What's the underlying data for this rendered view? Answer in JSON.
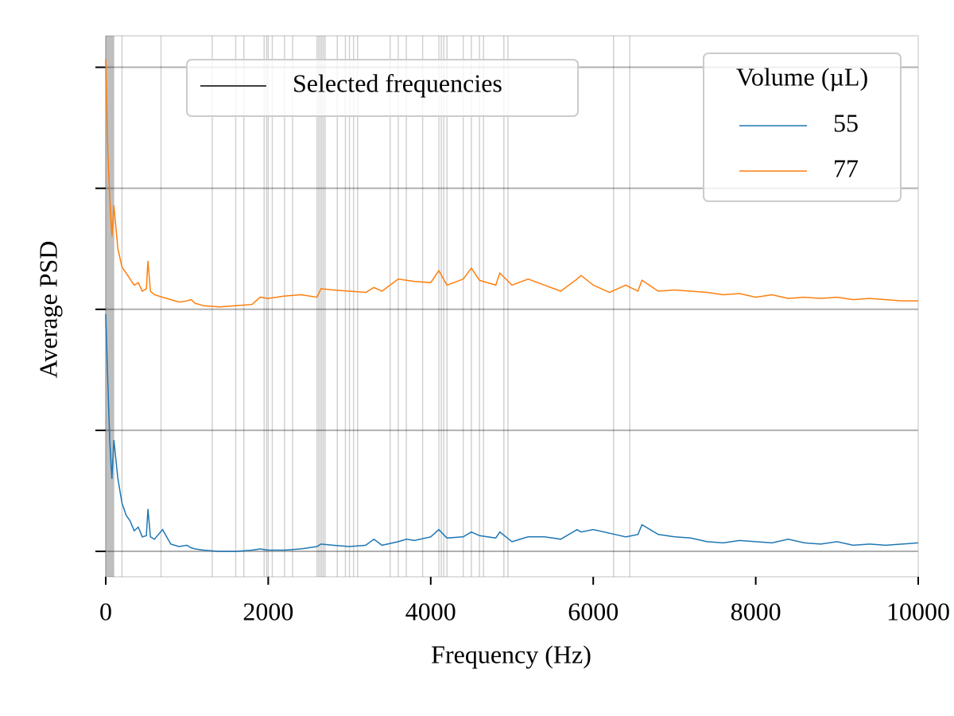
{
  "chart_data": {
    "type": "line",
    "x_label": "Frequency (Hz)",
    "y_label": "Average PSD",
    "xlim": [
      0,
      10000
    ],
    "xticks": [
      0,
      2000,
      4000,
      6000,
      8000,
      10000
    ],
    "ylim": [
      -0.21,
      4.26
    ],
    "yticks": [
      0,
      1,
      2,
      3,
      4
    ],
    "yticklabels": false,
    "grid": true,
    "x": [
      0,
      25,
      50,
      75,
      100,
      150,
      200,
      250,
      300,
      350,
      400,
      450,
      500,
      520,
      550,
      600,
      700,
      800,
      900,
      1000,
      1050,
      1100,
      1200,
      1400,
      1600,
      1800,
      1900,
      2000,
      2200,
      2400,
      2600,
      2650,
      2800,
      3000,
      3200,
      3300,
      3400,
      3600,
      3700,
      3800,
      4000,
      4100,
      4200,
      4400,
      4500,
      4600,
      4800,
      4850,
      5000,
      5200,
      5400,
      5600,
      5800,
      5850,
      6000,
      6200,
      6400,
      6550,
      6600,
      6800,
      7000,
      7200,
      7400,
      7600,
      7800,
      8000,
      8200,
      8400,
      8600,
      8800,
      9000,
      9200,
      9400,
      9600,
      9800,
      10000
    ],
    "legend_title": "Volume (µL)",
    "series": [
      {
        "name": "55",
        "color": "#1f77b4",
        "values": [
          1.96,
          1.4,
          0.9,
          0.6,
          0.92,
          0.6,
          0.4,
          0.3,
          0.25,
          0.17,
          0.2,
          0.12,
          0.13,
          0.35,
          0.12,
          0.1,
          0.18,
          0.06,
          0.04,
          0.05,
          0.03,
          0.02,
          0.01,
          0.0,
          0.0,
          0.01,
          0.02,
          0.01,
          0.01,
          0.02,
          0.04,
          0.06,
          0.05,
          0.04,
          0.05,
          0.1,
          0.05,
          0.08,
          0.1,
          0.09,
          0.12,
          0.18,
          0.11,
          0.12,
          0.16,
          0.13,
          0.11,
          0.16,
          0.08,
          0.12,
          0.12,
          0.1,
          0.18,
          0.16,
          0.18,
          0.15,
          0.12,
          0.14,
          0.22,
          0.14,
          0.12,
          0.11,
          0.08,
          0.07,
          0.09,
          0.08,
          0.07,
          0.1,
          0.07,
          0.06,
          0.08,
          0.05,
          0.06,
          0.05,
          0.06,
          0.07
        ]
      },
      {
        "name": "77",
        "color": "#ff7f0e",
        "values": [
          4.07,
          3.3,
          2.9,
          2.6,
          2.86,
          2.5,
          2.35,
          2.3,
          2.25,
          2.2,
          2.22,
          2.15,
          2.17,
          2.4,
          2.15,
          2.12,
          2.1,
          2.08,
          2.06,
          2.07,
          2.08,
          2.05,
          2.03,
          2.02,
          2.03,
          2.04,
          2.1,
          2.09,
          2.11,
          2.12,
          2.1,
          2.17,
          2.16,
          2.15,
          2.14,
          2.18,
          2.15,
          2.25,
          2.24,
          2.23,
          2.22,
          2.32,
          2.2,
          2.25,
          2.34,
          2.24,
          2.2,
          2.3,
          2.2,
          2.25,
          2.2,
          2.15,
          2.25,
          2.28,
          2.2,
          2.14,
          2.2,
          2.15,
          2.24,
          2.15,
          2.16,
          2.15,
          2.14,
          2.12,
          2.13,
          2.1,
          2.12,
          2.09,
          2.1,
          2.09,
          2.1,
          2.08,
          2.09,
          2.08,
          2.07,
          2.07
        ]
      }
    ],
    "selected_label": "Selected frequencies",
    "selected_color": "#000000",
    "selected_frequencies": [
      0,
      10,
      20,
      30,
      40,
      50,
      60,
      70,
      80,
      90,
      100,
      200,
      680,
      1310,
      1600,
      1700,
      1950,
      1980,
      2000,
      2050,
      2200,
      2300,
      2600,
      2620,
      2640,
      2660,
      2680,
      2700,
      2850,
      2950,
      3000,
      3050,
      3100,
      3500,
      3600,
      3700,
      3900,
      4100,
      4130,
      4160,
      4200,
      4400,
      4500,
      4600,
      4650,
      4900,
      4950,
      6250,
      6450
    ]
  }
}
